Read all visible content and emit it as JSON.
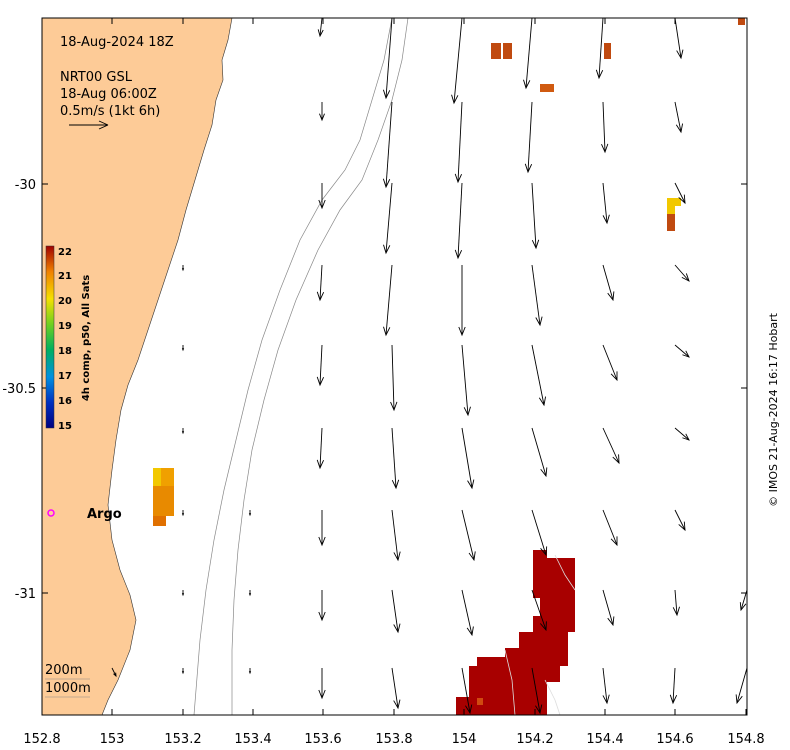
{
  "map": {
    "title": "18-Aug-2024 18Z",
    "product": "NRT00 GSL",
    "valid_time": "18-Aug 06:00Z",
    "scale_label": "0.5m/s (1kt 6h)",
    "credit": "© IMOS 21-Aug-2024 16:17 Hobart",
    "contour_labels": [
      "200m",
      "1000m"
    ],
    "float_label": "Argo",
    "lon_ticks": [
      "152.8",
      "153",
      "153.2",
      "153.4",
      "153.6",
      "153.8",
      "154",
      "154.2",
      "154.4",
      "154.6",
      "154.8"
    ],
    "lat_ticks": [
      "-30",
      "-30.5",
      "-31"
    ],
    "colorbar": {
      "label": "4h comp, p50, All Sats",
      "ticks": [
        "22",
        "21",
        "20",
        "19",
        "18",
        "17",
        "16",
        "15"
      ],
      "min": 15,
      "max": 22
    }
  },
  "colors": {
    "land": "#fdcb97",
    "warm_patch": "#a80000",
    "orange_patch": "#e07000",
    "yellow_patch": "#f2c800",
    "argo": "#ff00ff"
  }
}
